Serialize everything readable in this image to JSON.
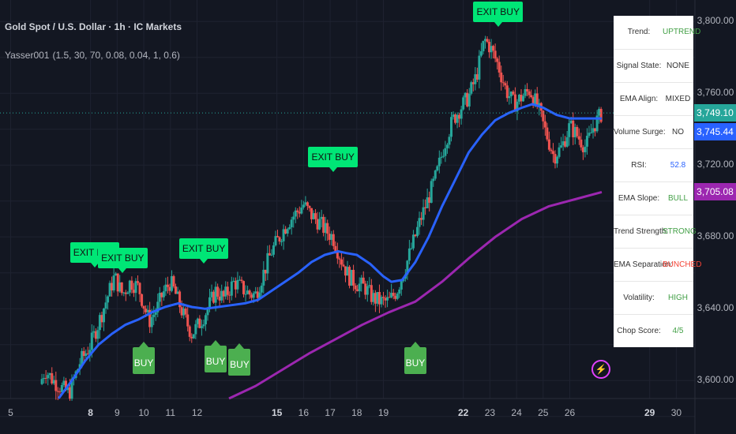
{
  "header": {
    "title": "Gold Spot / U.S. Dollar · 1h · IC Markets",
    "indicator_name": "Yasser001",
    "indicator_params": "(1.5, 30, 70, 0.08, 0.04, 1, 0.6)"
  },
  "chart_data": {
    "type": "candlestick",
    "symbol": "Gold Spot / U.S. Dollar",
    "timeframe": "1h",
    "broker": "IC Markets",
    "x_ticks": [
      {
        "label": "5",
        "bold": false
      },
      {
        "label": "8",
        "bold": true
      },
      {
        "label": "9",
        "bold": false
      },
      {
        "label": "10",
        "bold": false
      },
      {
        "label": "11",
        "bold": false
      },
      {
        "label": "12",
        "bold": false
      },
      {
        "label": "15",
        "bold": true
      },
      {
        "label": "16",
        "bold": false
      },
      {
        "label": "17",
        "bold": false
      },
      {
        "label": "18",
        "bold": false
      },
      {
        "label": "19",
        "bold": false
      },
      {
        "label": "22",
        "bold": true
      },
      {
        "label": "23",
        "bold": false
      },
      {
        "label": "24",
        "bold": false
      },
      {
        "label": "25",
        "bold": false
      },
      {
        "label": "26",
        "bold": false
      },
      {
        "label": "29",
        "bold": true
      },
      {
        "label": "30",
        "bold": false
      }
    ],
    "y_ticks": [
      "3,800.00",
      "3,760.00",
      "3,720.00",
      "3,680.00",
      "3,640.00",
      "3,600.00"
    ],
    "y_tick_values": [
      3800,
      3760,
      3720,
      3680,
      3640,
      3600
    ],
    "ylim": [
      3590,
      3812
    ],
    "xlim": [
      4.6,
      30.7
    ],
    "price_line_value": 3749.1,
    "last_price_labels": [
      {
        "value": "3,749.10",
        "color": "#26a69a"
      },
      {
        "value": "3,745.44",
        "color": "#2962ff"
      },
      {
        "value": "3,705.08",
        "color": "#9c27b0"
      }
    ],
    "close_path": [
      [
        6.1,
        3598
      ],
      [
        6.3,
        3606
      ],
      [
        6.6,
        3600
      ],
      [
        6.9,
        3596
      ],
      [
        7.2,
        3593
      ],
      [
        7.6,
        3610
      ],
      [
        8.0,
        3620
      ],
      [
        8.3,
        3632
      ],
      [
        8.6,
        3645
      ],
      [
        8.9,
        3658
      ],
      [
        9.2,
        3648
      ],
      [
        9.5,
        3655
      ],
      [
        9.8,
        3652
      ],
      [
        10.0,
        3642
      ],
      [
        10.2,
        3633
      ],
      [
        10.5,
        3640
      ],
      [
        10.7,
        3648
      ],
      [
        11.0,
        3655
      ],
      [
        11.2,
        3648
      ],
      [
        11.5,
        3636
      ],
      [
        11.8,
        3626
      ],
      [
        12.1,
        3632
      ],
      [
        12.4,
        3640
      ],
      [
        12.7,
        3650
      ],
      [
        13.0,
        3646
      ],
      [
        13.4,
        3655
      ],
      [
        13.8,
        3650
      ],
      [
        14.0,
        3648
      ],
      [
        14.2,
        3648
      ],
      [
        14.5,
        3660
      ],
      [
        14.8,
        3672
      ],
      [
        15.1,
        3680
      ],
      [
        15.4,
        3688
      ],
      [
        15.7,
        3693
      ],
      [
        16.0,
        3698
      ],
      [
        16.3,
        3692
      ],
      [
        16.6,
        3688
      ],
      [
        16.8,
        3684
      ],
      [
        17.1,
        3680
      ],
      [
        17.4,
        3668
      ],
      [
        17.7,
        3658
      ],
      [
        18.0,
        3654
      ],
      [
        18.3,
        3652
      ],
      [
        18.6,
        3646
      ],
      [
        18.9,
        3644
      ],
      [
        19.2,
        3644
      ],
      [
        19.5,
        3650
      ],
      [
        19.8,
        3662
      ],
      [
        20.1,
        3676
      ],
      [
        20.4,
        3690
      ],
      [
        20.7,
        3702
      ],
      [
        21.0,
        3715
      ],
      [
        21.3,
        3732
      ],
      [
        21.6,
        3745
      ],
      [
        21.9,
        3752
      ],
      [
        22.2,
        3758
      ],
      [
        22.5,
        3770
      ],
      [
        22.8,
        3790
      ],
      [
        23.0,
        3786
      ],
      [
        23.3,
        3776
      ],
      [
        23.6,
        3762
      ],
      [
        23.9,
        3754
      ],
      [
        24.2,
        3758
      ],
      [
        24.5,
        3762
      ],
      [
        24.8,
        3752
      ],
      [
        25.1,
        3738
      ],
      [
        25.4,
        3725
      ],
      [
        25.7,
        3730
      ],
      [
        26.0,
        3742
      ],
      [
        26.3,
        3736
      ],
      [
        26.6,
        3730
      ],
      [
        26.9,
        3742
      ],
      [
        27.2,
        3749
      ]
    ],
    "series": [
      {
        "name": "",
        "color": "#2962ff",
        "points": [
          [
            6.8,
            3590
          ],
          [
            7.3,
            3600
          ],
          [
            7.8,
            3611
          ],
          [
            8.3,
            3620
          ],
          [
            8.8,
            3626
          ],
          [
            9.3,
            3631
          ],
          [
            9.8,
            3634
          ],
          [
            10.3,
            3638
          ],
          [
            10.8,
            3641
          ],
          [
            11.3,
            3643
          ],
          [
            11.8,
            3641
          ],
          [
            12.3,
            3640
          ],
          [
            12.8,
            3641
          ],
          [
            13.3,
            3642
          ],
          [
            13.8,
            3643
          ],
          [
            14.3,
            3645
          ],
          [
            14.8,
            3650
          ],
          [
            15.3,
            3655
          ],
          [
            15.8,
            3660
          ],
          [
            16.3,
            3666
          ],
          [
            16.8,
            3670
          ],
          [
            17.3,
            3672
          ],
          [
            17.6,
            3671
          ],
          [
            18.0,
            3670
          ],
          [
            18.5,
            3665
          ],
          [
            19.0,
            3658
          ],
          [
            19.3,
            3655
          ],
          [
            19.7,
            3656
          ],
          [
            20.2,
            3666
          ],
          [
            20.7,
            3680
          ],
          [
            21.2,
            3697
          ],
          [
            21.7,
            3712
          ],
          [
            22.2,
            3727
          ],
          [
            22.7,
            3737
          ],
          [
            23.2,
            3745
          ],
          [
            23.7,
            3749
          ],
          [
            24.2,
            3752
          ],
          [
            24.6,
            3754
          ],
          [
            25.0,
            3752
          ],
          [
            25.5,
            3748
          ],
          [
            26.0,
            3746
          ],
          [
            26.5,
            3746
          ],
          [
            27.2,
            3746
          ]
        ]
      },
      {
        "name": "",
        "color": "#9c27b0",
        "points": [
          [
            13.2,
            3590
          ],
          [
            14.2,
            3597
          ],
          [
            15.2,
            3606
          ],
          [
            16.2,
            3615
          ],
          [
            17.2,
            3623
          ],
          [
            18.2,
            3631
          ],
          [
            19.2,
            3638
          ],
          [
            20.2,
            3644
          ],
          [
            21.2,
            3655
          ],
          [
            22.2,
            3668
          ],
          [
            23.2,
            3680
          ],
          [
            24.2,
            3690
          ],
          [
            25.2,
            3697
          ],
          [
            26.2,
            3701
          ],
          [
            27.2,
            3705
          ]
        ]
      }
    ],
    "signals": [
      {
        "type": "EXIT BUY",
        "x": 8.15,
        "y": 3663
      },
      {
        "type": "EXIT BUY",
        "x": 9.2,
        "y": 3660
      },
      {
        "type": "EXIT BUY",
        "x": 12.25,
        "y": 3665
      },
      {
        "type": "EXIT BUY",
        "x": 17.1,
        "y": 3716
      },
      {
        "type": "EXIT BUY",
        "x": 23.3,
        "y": 3797
      },
      {
        "type": "BUY",
        "x": 10.0,
        "y": 3622
      },
      {
        "type": "BUY",
        "x": 12.7,
        "y": 3623
      },
      {
        "type": "BUY",
        "x": 13.6,
        "y": 3621
      },
      {
        "type": "BUY",
        "x": 20.2,
        "y": 3622
      }
    ]
  },
  "info_panel": {
    "rows": [
      {
        "label": "Trend:",
        "value": "UPTREND",
        "color": "#43a047"
      },
      {
        "label": "Signal State:",
        "value": "NONE",
        "color": "#333333"
      },
      {
        "label": "EMA Align:",
        "value": "MIXED",
        "color": "#333333"
      },
      {
        "label": "Volume Surge:",
        "value": "NO",
        "color": "#333333"
      },
      {
        "label": "RSI:",
        "value": "52.8",
        "color": "#2962ff"
      },
      {
        "label": "EMA Slope:",
        "value": "BULL",
        "color": "#43a047"
      },
      {
        "label": "Trend Strength:",
        "value": "STRONG",
        "color": "#43a047"
      },
      {
        "label": "EMA Separation:",
        "value": "BUNCHED",
        "color": "#f44336"
      },
      {
        "label": "Volatility:",
        "value": "HIGH",
        "color": "#43a047"
      },
      {
        "label": "Chop Score:",
        "value": "4/5",
        "color": "#43a047"
      }
    ]
  },
  "colors": {
    "up": "#26a69a",
    "down": "#ef5350",
    "background": "#131722",
    "grid": "#1e2230"
  },
  "icons": {
    "alert": "lightning-icon"
  }
}
